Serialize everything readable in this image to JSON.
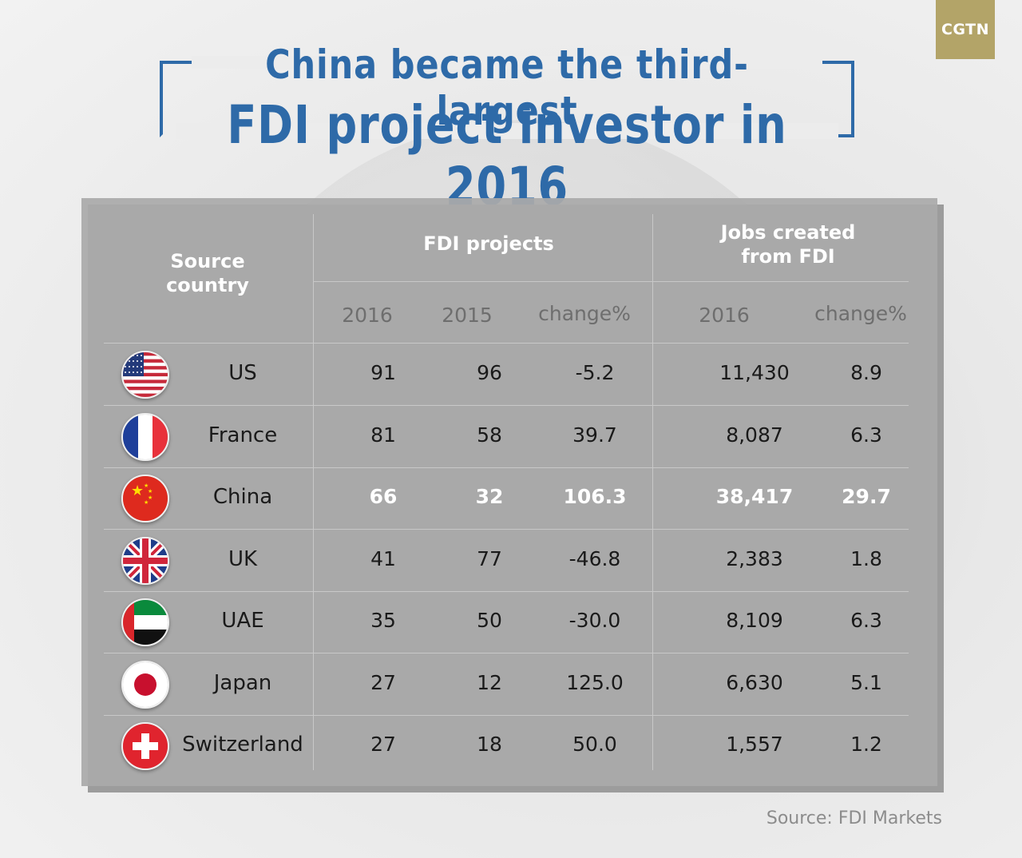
{
  "logo": "CGTN",
  "title": {
    "line1": "China became the third-largest",
    "line2": "FDI project investor in 2016"
  },
  "table": {
    "header_source": "Source country",
    "header_fdi": "FDI projects",
    "header_jobs": "Jobs created from FDI",
    "sub_2016": "2016",
    "sub_2015": "2015",
    "sub_change": "change%",
    "sub_jobs_2016": "2016",
    "sub_jobs_change": "change%"
  },
  "highlight_color": "#ffffff",
  "title_color": "#2e6aa8",
  "chart_data": {
    "type": "table",
    "title": "China became the third-largest FDI project investor in 2016",
    "columns": [
      "Source country",
      "FDI projects 2016",
      "FDI projects 2015",
      "FDI projects change%",
      "Jobs created from FDI 2016",
      "Jobs created from FDI change%"
    ],
    "rows": [
      {
        "country": "US",
        "flag": "us-flag-icon",
        "p2016": "91",
        "p2015": "96",
        "pchange": "-5.2",
        "j2016": "11,430",
        "jchange": "8.9"
      },
      {
        "country": "France",
        "flag": "france-flag-icon",
        "p2016": "81",
        "p2015": "58",
        "pchange": "39.7",
        "j2016": "8,087",
        "jchange": "6.3"
      },
      {
        "country": "China",
        "flag": "china-flag-icon",
        "p2016": "66",
        "p2015": "32",
        "pchange": "106.3",
        "j2016": "38,417",
        "jchange": "29.7",
        "highlight": true
      },
      {
        "country": "UK",
        "flag": "uk-flag-icon",
        "p2016": "41",
        "p2015": "77",
        "pchange": "-46.8",
        "j2016": "2,383",
        "jchange": "1.8"
      },
      {
        "country": "UAE",
        "flag": "uae-flag-icon",
        "p2016": "35",
        "p2015": "50",
        "pchange": "-30.0",
        "j2016": "8,109",
        "jchange": "6.3"
      },
      {
        "country": "Japan",
        "flag": "japan-flag-icon",
        "p2016": "27",
        "p2015": "12",
        "pchange": "125.0",
        "j2016": "6,630",
        "jchange": "5.1"
      },
      {
        "country": "Switzerland",
        "flag": "switzerland-flag-icon",
        "p2016": "27",
        "p2015": "18",
        "pchange": "50.0",
        "j2016": "1,557",
        "jchange": "1.2"
      }
    ]
  },
  "source": "Source: FDI Markets"
}
